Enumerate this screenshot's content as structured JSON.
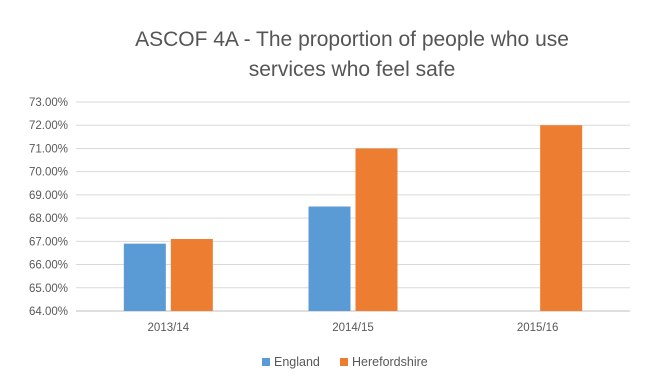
{
  "chart_data": {
    "type": "bar",
    "title_lines": [
      "ASCOF 4A - The proportion of people who use",
      "services who feel safe"
    ],
    "categories": [
      "2013/14",
      "2014/15",
      "2015/16"
    ],
    "series": [
      {
        "name": "England",
        "color": "#5b9bd5",
        "values": [
          66.9,
          68.5,
          null
        ]
      },
      {
        "name": "Herefordshire",
        "color": "#ed7d31",
        "values": [
          67.1,
          71.0,
          72.0
        ]
      }
    ],
    "y_ticks": [
      "64.00%",
      "65.00%",
      "66.00%",
      "67.00%",
      "68.00%",
      "69.00%",
      "70.00%",
      "71.00%",
      "72.00%",
      "73.00%"
    ],
    "ylim": [
      64,
      73
    ],
    "xlabel": "",
    "ylabel": "",
    "grid": true,
    "legend_position": "bottom"
  }
}
